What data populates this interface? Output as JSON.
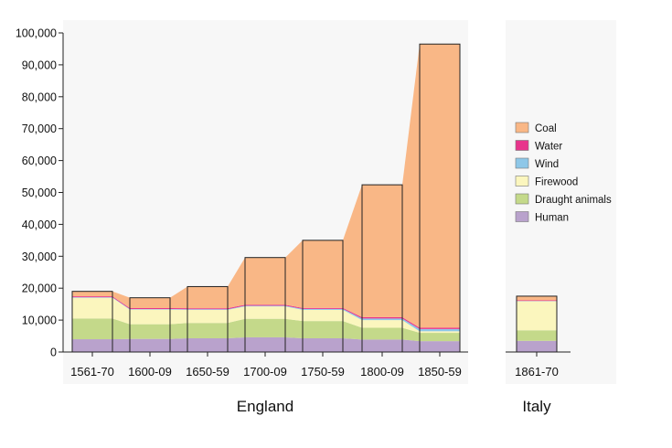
{
  "chart_data": {
    "type": "area",
    "yticks": [
      "0",
      "10,000",
      "20,000",
      "30,000",
      "40,000",
      "50,000",
      "60,000",
      "70,000",
      "80,000",
      "90,000",
      "100,000"
    ],
    "ylim": [
      0,
      100000
    ],
    "grid": false,
    "legend_placement": "right",
    "series": [
      {
        "name": "Human",
        "color": "#b9a2cc"
      },
      {
        "name": "Draught animals",
        "color": "#c4d98a"
      },
      {
        "name": "Firewood",
        "color": "#fbf6be"
      },
      {
        "name": "Wind",
        "color": "#8ec7e8"
      },
      {
        "name": "Water",
        "color": "#e8348c"
      },
      {
        "name": "Coal",
        "color": "#f9b786"
      }
    ],
    "legend_order": [
      "Coal",
      "Water",
      "Wind",
      "Firewood",
      "Draught animals",
      "Human"
    ],
    "groups": [
      {
        "label": "England",
        "periods": [
          {
            "label": "1561-70",
            "values": {
              "Human": 4000,
              "Draught animals": 6500,
              "Firewood": 6500,
              "Wind": 150,
              "Water": 300,
              "Coal": 1550
            }
          },
          {
            "label": "1600-09",
            "values": {
              "Human": 4100,
              "Draught animals": 4600,
              "Firewood": 4600,
              "Wind": 150,
              "Water": 300,
              "Coal": 3250
            }
          },
          {
            "label": "1650-59",
            "values": {
              "Human": 4300,
              "Draught animals": 4800,
              "Firewood": 4100,
              "Wind": 200,
              "Water": 300,
              "Coal": 6800
            }
          },
          {
            "label": "1700-09",
            "values": {
              "Human": 4600,
              "Draught animals": 5800,
              "Firewood": 3900,
              "Wind": 200,
              "Water": 300,
              "Coal": 14800
            }
          },
          {
            "label": "1750-59",
            "values": {
              "Human": 4300,
              "Draught animals": 5400,
              "Firewood": 3500,
              "Wind": 300,
              "Water": 300,
              "Coal": 21200
            }
          },
          {
            "label": "1800-09",
            "values": {
              "Human": 3900,
              "Draught animals": 3700,
              "Firewood": 2400,
              "Wind": 500,
              "Water": 400,
              "Coal": 41500
            }
          },
          {
            "label": "1850-59",
            "values": {
              "Human": 3400,
              "Draught animals": 2600,
              "Firewood": 500,
              "Wind": 700,
              "Water": 400,
              "Coal": 88900
            }
          }
        ]
      },
      {
        "label": "Italy",
        "periods": [
          {
            "label": "1861-70",
            "values": {
              "Human": 3500,
              "Draught animals": 3300,
              "Firewood": 9100,
              "Wind": 100,
              "Water": 200,
              "Coal": 1300
            }
          }
        ]
      }
    ]
  }
}
